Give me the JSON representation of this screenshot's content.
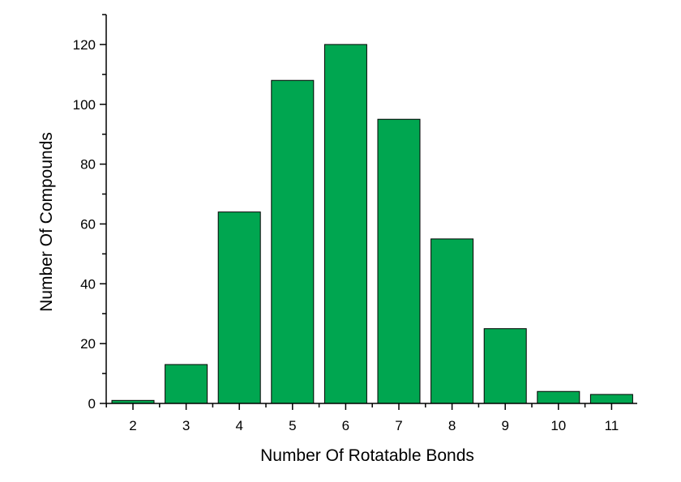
{
  "chart_data": {
    "type": "bar",
    "title": "",
    "xlabel": "Number Of Rotatable Bonds",
    "ylabel": "Number Of Compounds",
    "categories": [
      "2",
      "3",
      "4",
      "5",
      "6",
      "7",
      "8",
      "9",
      "10",
      "11"
    ],
    "values": [
      1,
      13,
      64,
      108,
      120,
      95,
      55,
      25,
      4,
      3
    ],
    "ylim": [
      0,
      130
    ],
    "yticks": [
      "0",
      "20",
      "40",
      "60",
      "80",
      "100",
      "120"
    ],
    "grid": false,
    "legend": "none",
    "bar_color": "#00a650",
    "bar_edge_color": "#000000"
  }
}
